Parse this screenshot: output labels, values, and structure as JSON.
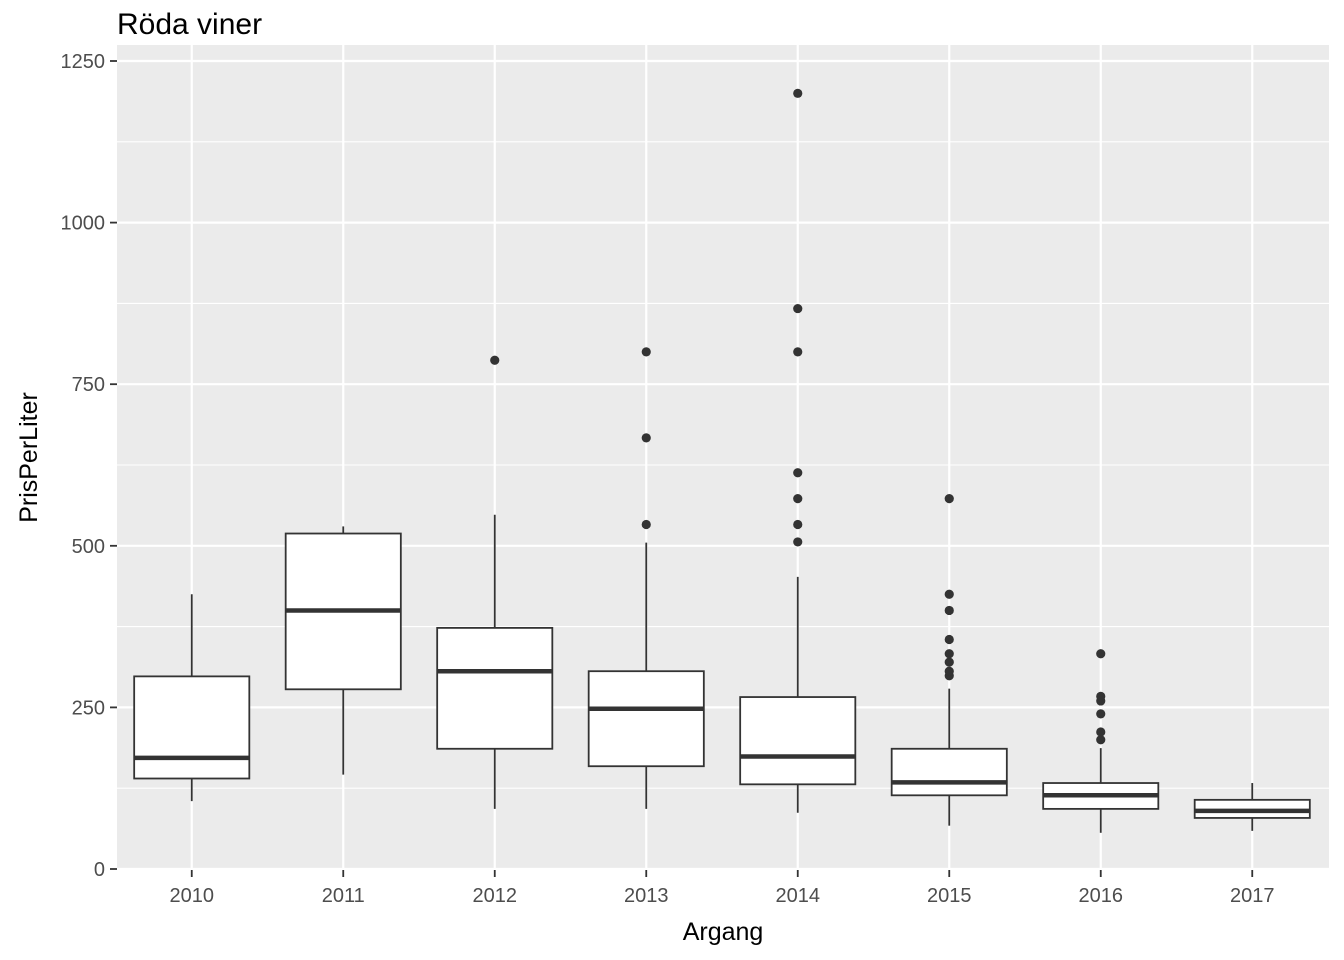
{
  "chart_data": {
    "type": "boxplot",
    "title": "Röda viner",
    "xlabel": "Argang",
    "ylabel": "PrisPerLiter",
    "ylim": [
      0,
      1250
    ],
    "yticks": [
      0,
      250,
      500,
      750,
      1000,
      1250
    ],
    "grid": true,
    "colors": {
      "panel_background": "#ebebeb",
      "grid_major": "#ffffff",
      "box_fill": "#ffffff",
      "box_stroke": "#333333",
      "outlier": "#333333"
    },
    "categories": [
      "2010",
      "2011",
      "2012",
      "2013",
      "2014",
      "2015",
      "2016",
      "2017"
    ],
    "boxes": [
      {
        "category": "2010",
        "whisker_low": 105,
        "q1": 140,
        "median": 172,
        "q3": 298,
        "whisker_high": 425,
        "outliers": []
      },
      {
        "category": "2011",
        "whisker_low": 146,
        "q1": 278,
        "median": 400,
        "q3": 519,
        "whisker_high": 530,
        "outliers": []
      },
      {
        "category": "2012",
        "whisker_low": 93,
        "q1": 186,
        "median": 306,
        "q3": 373,
        "whisker_high": 548,
        "outliers": [
          787
        ]
      },
      {
        "category": "2013",
        "whisker_low": 93,
        "q1": 159,
        "median": 248,
        "q3": 306,
        "whisker_high": 505,
        "outliers": [
          533,
          667,
          800
        ]
      },
      {
        "category": "2014",
        "whisker_low": 87,
        "q1": 131,
        "median": 174,
        "q3": 266,
        "whisker_high": 452,
        "outliers": [
          506,
          533,
          573,
          613,
          800,
          867,
          1200
        ]
      },
      {
        "category": "2015",
        "whisker_low": 67,
        "q1": 114,
        "median": 134,
        "q3": 186,
        "whisker_high": 279,
        "outliers": [
          299,
          306,
          320,
          333,
          355,
          400,
          425,
          573
        ]
      },
      {
        "category": "2016",
        "whisker_low": 56,
        "q1": 93,
        "median": 114,
        "q3": 133,
        "whisker_high": 187,
        "outliers": [
          200,
          212,
          240,
          260,
          267,
          333
        ]
      },
      {
        "category": "2017",
        "whisker_low": 59,
        "q1": 79,
        "median": 90,
        "q3": 107,
        "whisker_high": 133,
        "outliers": []
      }
    ]
  }
}
